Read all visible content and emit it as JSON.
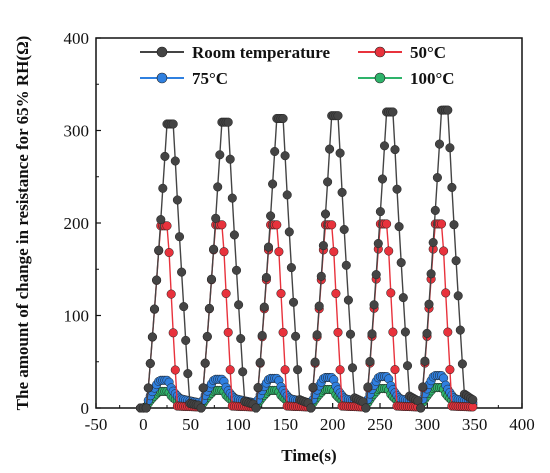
{
  "chart_data": {
    "type": "scatter",
    "xlabel": "Time(s)",
    "ylabel": "The amount of change in resistance for 65% RH(Ω)",
    "xlim": [
      -50,
      400
    ],
    "ylim": [
      0,
      400
    ],
    "xticks": [
      -50,
      0,
      50,
      100,
      150,
      200,
      250,
      300,
      350,
      400
    ],
    "yticks": [
      0,
      100,
      200,
      300,
      400
    ],
    "grid": false,
    "legend_position": "top",
    "cycle_period_s": 58,
    "cycle_starts_s": [
      3,
      61,
      119,
      177,
      235,
      293
    ],
    "series": [
      {
        "name": "Room temperature",
        "color": "#444444",
        "baseline": 0,
        "peaks": [
          307,
          309,
          313,
          316,
          320,
          322
        ],
        "floor_after_release": [
          5,
          7,
          9,
          11,
          13,
          15
        ],
        "line_style": "connected"
      },
      {
        "name": "50°C",
        "color": "#e8323c",
        "baseline": 0,
        "peaks": [
          197,
          198,
          198,
          198,
          199,
          199
        ],
        "floor_after_release": [
          2,
          2,
          2,
          2,
          2,
          2
        ],
        "line_style": "connected"
      },
      {
        "name": "75°C",
        "color": "#2f80e0",
        "baseline": 0,
        "peaks": [
          30,
          31,
          32,
          33,
          34,
          35
        ],
        "floor_after_release": [
          10,
          10,
          10,
          10,
          10,
          10
        ],
        "line_style": "connected"
      },
      {
        "name": "100°C",
        "color": "#2eb36a",
        "baseline": 0,
        "peaks": [
          18,
          19,
          19,
          20,
          21,
          22
        ],
        "floor_after_release": [
          6,
          6,
          6,
          6,
          6,
          6
        ],
        "line_style": "connected"
      }
    ]
  }
}
